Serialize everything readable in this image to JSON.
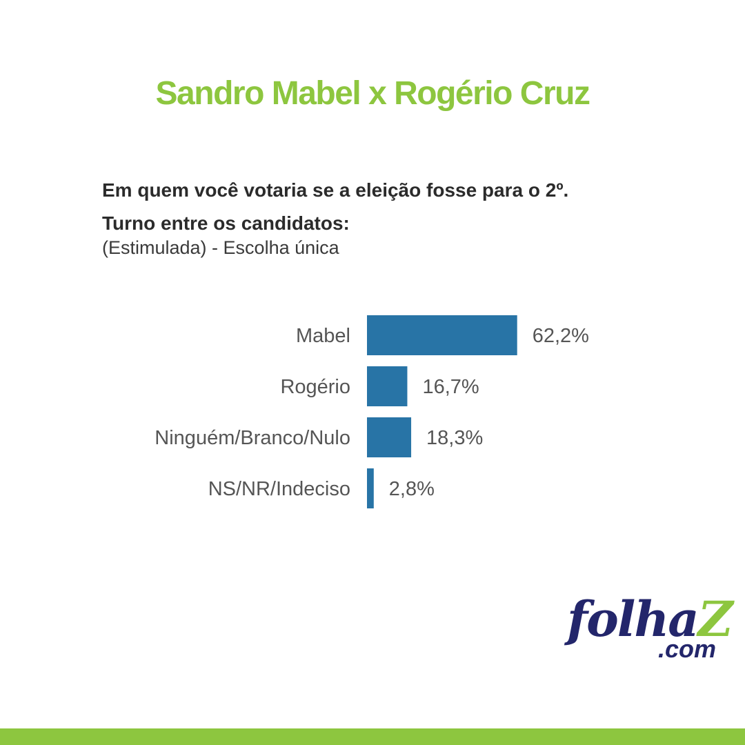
{
  "header": {
    "title": "Sandro Mabel x Rogério Cruz"
  },
  "question": {
    "text": "Em quem você votaria se a eleição fosse para o 2º. Turno entre os candidatos:",
    "subtitle": "(Estimulada) - Escolha única"
  },
  "chart_data": {
    "type": "bar",
    "orientation": "horizontal",
    "categories": [
      "Mabel",
      "Rogério",
      "Ninguém/Branco/Nulo",
      "NS/NR/Indeciso"
    ],
    "values": [
      62.2,
      16.7,
      18.3,
      2.8
    ],
    "value_labels": [
      "62,2%",
      "16,7%",
      "18,3%",
      "2,8%"
    ],
    "unit": "%",
    "title": "",
    "xlabel": "",
    "ylabel": "",
    "grid": false,
    "bar_color": "#2874a6"
  },
  "logo": {
    "name_prefix": "folha",
    "name_z": "Z",
    "domain": ".com",
    "primary_color": "#23266b",
    "accent_color": "#8dc63f"
  },
  "colors": {
    "accent": "#8dc63f",
    "bar": "#2874a6"
  }
}
